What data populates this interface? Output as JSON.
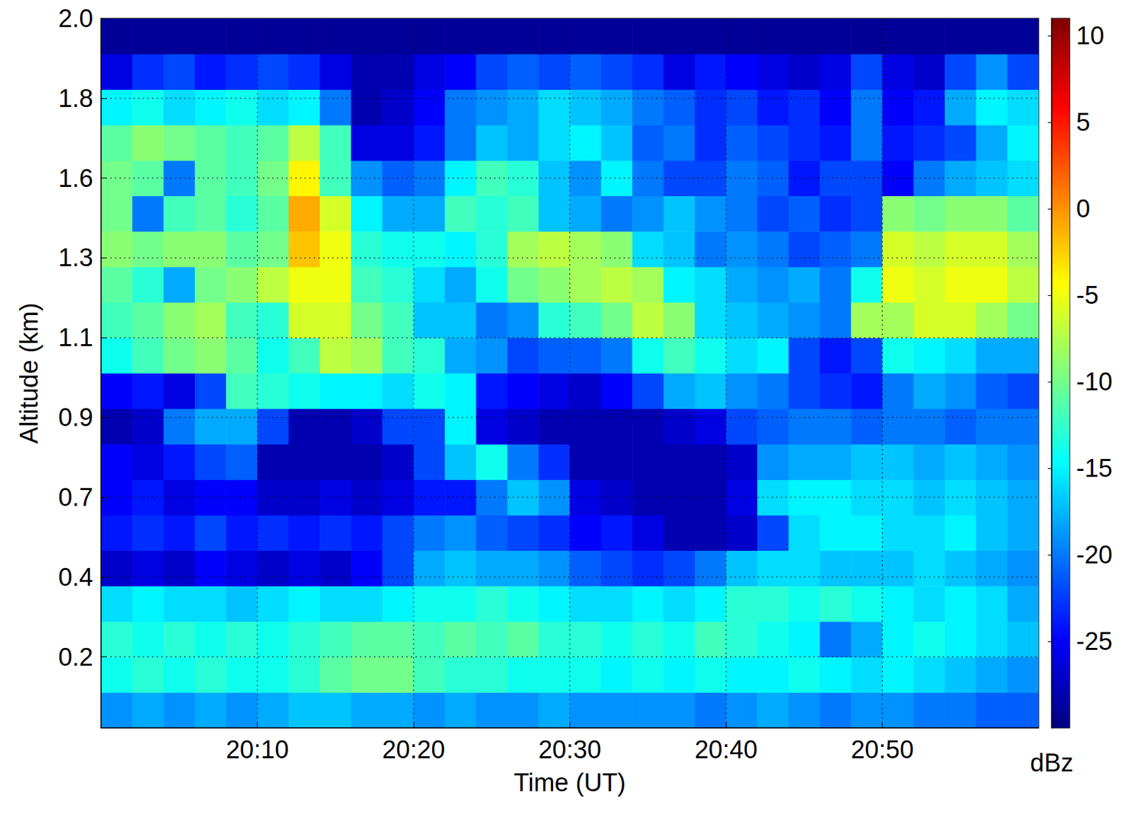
{
  "chart_data": {
    "type": "heatmap",
    "x_label": "Time (UT)",
    "y_label": "Altitude (km)",
    "xlim": [
      0,
      60
    ],
    "xticks": [
      {
        "value": 10,
        "label": "20:10"
      },
      {
        "value": 20,
        "label": "20:20"
      },
      {
        "value": 30,
        "label": "20:30"
      },
      {
        "value": 40,
        "label": "20:40"
      },
      {
        "value": 50,
        "label": "20:50"
      }
    ],
    "ylim": [
      0,
      2
    ],
    "yticks": [
      0.2,
      {
        "value": 0.425,
        "label": "0.4"
      },
      {
        "value": 0.65,
        "label": "0.7"
      },
      {
        "value": 0.875,
        "label": "0.9"
      },
      1.1,
      {
        "value": 1.325,
        "label": "1.3"
      },
      {
        "value": 1.55,
        "label": "1.6"
      },
      {
        "value": 1.775,
        "label": "1.8"
      },
      {
        "value": 2,
        "label": "2.0"
      }
    ],
    "grid": true,
    "colorbar": {
      "range": [
        -30,
        11
      ],
      "ticks": [
        -25,
        -20,
        -15,
        -10,
        -5,
        0,
        5,
        10
      ],
      "label": "dBz"
    },
    "x": [
      1,
      3,
      5,
      7,
      9,
      11,
      13,
      15,
      17,
      19,
      21,
      23,
      25,
      27,
      29,
      31,
      33,
      35,
      37,
      39,
      41,
      43,
      45,
      47,
      49,
      51,
      53,
      55,
      57,
      59
    ],
    "y": [
      0.05,
      0.15,
      0.25,
      0.35,
      0.45,
      0.55,
      0.65,
      0.75,
      0.85,
      0.95,
      1.05,
      1.15,
      1.25,
      1.35,
      1.45,
      1.55,
      1.65,
      1.75,
      1.85,
      1.95
    ],
    "values": [
      [
        -19,
        -18,
        -19,
        -18,
        -19,
        -18,
        -17,
        -17,
        -18,
        -18,
        -19,
        -18,
        -19,
        -19,
        -18,
        -19,
        -19,
        -19,
        -19,
        -20,
        -19,
        -18,
        -19,
        -20,
        -19,
        -19,
        -20,
        -20,
        -21,
        -21
      ],
      [
        -14,
        -13,
        -14,
        -13,
        -14,
        -14,
        -13,
        -11,
        -10,
        -10,
        -12,
        -13,
        -13,
        -14,
        -14,
        -14,
        -15,
        -14,
        -15,
        -14,
        -15,
        -15,
        -14,
        -15,
        -16,
        -15,
        -16,
        -17,
        -18,
        -19
      ],
      [
        -13,
        -14,
        -13,
        -14,
        -13,
        -14,
        -13,
        -12,
        -11,
        -11,
        -12,
        -11,
        -12,
        -11,
        -13,
        -13,
        -14,
        -13,
        -14,
        -12,
        -13,
        -14,
        -15,
        -20,
        -18,
        -15,
        -14,
        -15,
        -16,
        -17
      ],
      [
        -16,
        -15,
        -16,
        -16,
        -17,
        -16,
        -15,
        -16,
        -16,
        -15,
        -14,
        -14,
        -13,
        -14,
        -15,
        -16,
        -16,
        -15,
        -16,
        -15,
        -13,
        -13,
        -14,
        -13,
        -14,
        -15,
        -16,
        -15,
        -16,
        -18
      ],
      [
        -27,
        -26,
        -27,
        -25,
        -26,
        -27,
        -26,
        -27,
        -25,
        -22,
        -18,
        -17,
        -18,
        -18,
        -19,
        -21,
        -22,
        -23,
        -22,
        -20,
        -17,
        -16,
        -16,
        -17,
        -17,
        -17,
        -16,
        -17,
        -18,
        -19
      ],
      [
        -24,
        -23,
        -24,
        -22,
        -24,
        -23,
        -24,
        -23,
        -24,
        -22,
        -20,
        -19,
        -21,
        -22,
        -23,
        -25,
        -24,
        -26,
        -28,
        -28,
        -27,
        -22,
        -16,
        -15,
        -15,
        -16,
        -16,
        -15,
        -17,
        -18
      ],
      [
        -25,
        -24,
        -26,
        -25,
        -25,
        -27,
        -27,
        -26,
        -27,
        -26,
        -24,
        -24,
        -20,
        -17,
        -19,
        -26,
        -27,
        -28,
        -28,
        -28,
        -26,
        -16,
        -15,
        -15,
        -16,
        -16,
        -17,
        -16,
        -17,
        -18
      ],
      [
        -25,
        -26,
        -24,
        -22,
        -21,
        -28,
        -28,
        -28,
        -28,
        -27,
        -22,
        -17,
        -14,
        -20,
        -23,
        -28,
        -28,
        -28,
        -28,
        -28,
        -27,
        -19,
        -18,
        -18,
        -17,
        -17,
        -18,
        -17,
        -18,
        -19
      ],
      [
        -28,
        -27,
        -20,
        -18,
        -18,
        -22,
        -28,
        -28,
        -27,
        -22,
        -22,
        -15,
        -26,
        -27,
        -28,
        -28,
        -28,
        -28,
        -27,
        -26,
        -22,
        -21,
        -20,
        -20,
        -21,
        -20,
        -20,
        -21,
        -20,
        -20
      ],
      [
        -25,
        -24,
        -26,
        -22,
        -12,
        -13,
        -14,
        -15,
        -15,
        -16,
        -14,
        -15,
        -24,
        -25,
        -26,
        -27,
        -25,
        -22,
        -18,
        -17,
        -19,
        -20,
        -22,
        -23,
        -24,
        -20,
        -18,
        -19,
        -21,
        -22
      ],
      [
        -14,
        -12,
        -10,
        -9,
        -11,
        -14,
        -12,
        -7,
        -8,
        -12,
        -13,
        -18,
        -19,
        -22,
        -21,
        -21,
        -20,
        -14,
        -12,
        -14,
        -16,
        -15,
        -22,
        -24,
        -22,
        -14,
        -15,
        -16,
        -18,
        -18
      ],
      [
        -12,
        -11,
        -9,
        -8,
        -12,
        -13,
        -6,
        -6,
        -10,
        -12,
        -17,
        -17,
        -20,
        -19,
        -13,
        -12,
        -10,
        -7,
        -9,
        -16,
        -17,
        -18,
        -19,
        -20,
        -8,
        -8,
        -6,
        -6,
        -8,
        -10
      ],
      [
        -11,
        -13,
        -18,
        -10,
        -9,
        -7,
        -5,
        -5,
        -12,
        -13,
        -16,
        -18,
        -14,
        -10,
        -9,
        -8,
        -7,
        -8,
        -15,
        -16,
        -18,
        -19,
        -18,
        -20,
        -14,
        -5,
        -6,
        -5,
        -5,
        -7
      ],
      [
        -9,
        -10,
        -9,
        -9,
        -11,
        -10,
        -2,
        -5,
        -13,
        -14,
        -14,
        -15,
        -13,
        -8,
        -7,
        -8,
        -9,
        -16,
        -17,
        -20,
        -19,
        -20,
        -22,
        -21,
        -20,
        -6,
        -7,
        -6,
        -6,
        -8
      ],
      [
        -10,
        -20,
        -12,
        -11,
        -13,
        -11,
        -1,
        -6,
        -15,
        -18,
        -18,
        -12,
        -13,
        -12,
        -17,
        -18,
        -20,
        -19,
        -17,
        -19,
        -20,
        -22,
        -21,
        -23,
        -22,
        -9,
        -10,
        -9,
        -9,
        -11
      ],
      [
        -10,
        -11,
        -20,
        -11,
        -12,
        -10,
        -4,
        -12,
        -19,
        -21,
        -20,
        -15,
        -12,
        -13,
        -17,
        -19,
        -15,
        -20,
        -22,
        -22,
        -20,
        -21,
        -24,
        -22,
        -22,
        -25,
        -20,
        -18,
        -17,
        -16
      ],
      [
        -11,
        -9,
        -10,
        -11,
        -12,
        -11,
        -7,
        -12,
        -26,
        -26,
        -24,
        -20,
        -17,
        -18,
        -16,
        -15,
        -17,
        -21,
        -20,
        -23,
        -21,
        -22,
        -23,
        -24,
        -20,
        -24,
        -23,
        -22,
        -18,
        -15
      ],
      [
        -15,
        -14,
        -16,
        -15,
        -14,
        -16,
        -15,
        -20,
        -28,
        -27,
        -25,
        -20,
        -19,
        -18,
        -16,
        -17,
        -18,
        -20,
        -21,
        -23,
        -22,
        -24,
        -23,
        -25,
        -20,
        -25,
        -24,
        -18,
        -15,
        -16
      ],
      [
        -26,
        -23,
        -22,
        -24,
        -23,
        -22,
        -23,
        -26,
        -28,
        -28,
        -26,
        -25,
        -22,
        -21,
        -22,
        -21,
        -22,
        -23,
        -26,
        -24,
        -25,
        -26,
        -27,
        -26,
        -22,
        -26,
        -27,
        -22,
        -19,
        -22
      ],
      [
        -29,
        -29,
        -29,
        -29,
        -29,
        -29,
        -29,
        -29,
        -29,
        -29,
        -29,
        -29,
        -29,
        -29,
        -29,
        -29,
        -29,
        -29,
        -29,
        -29,
        -29,
        -29,
        -29,
        -29,
        -29,
        -29,
        -29,
        -29,
        -29,
        -29
      ]
    ]
  }
}
